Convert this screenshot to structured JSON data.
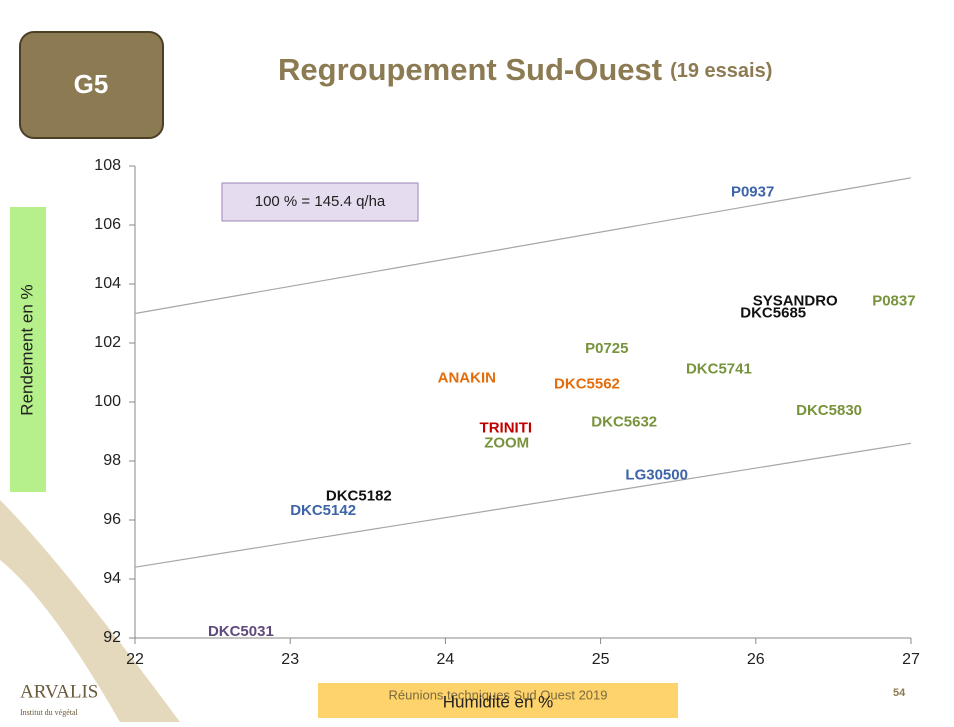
{
  "badge": "G5",
  "chart_data": {
    "type": "scatter",
    "title": "Regroupement Sud-Ouest",
    "subtitle": "(19 essais)",
    "annotation": "100 % = 145.4 q/ha",
    "x_label": "Humidité en %",
    "y_label": "Rendement en %",
    "xlim": [
      22,
      27
    ],
    "ylim": [
      92,
      108
    ],
    "xticks": [
      22,
      23,
      24,
      25,
      26,
      27
    ],
    "yticks": [
      92,
      94,
      96,
      98,
      100,
      102,
      104,
      106,
      108
    ],
    "trend_lines": [
      {
        "color": "#a6a6a6",
        "values": [
          103.0,
          107.6
        ]
      },
      {
        "color": "#a6a6a6",
        "values": [
          94.4,
          98.6
        ]
      }
    ],
    "points": [
      {
        "label": "P0937",
        "x": 25.84,
        "y": 107.1,
        "color": "#3d64a8"
      },
      {
        "label": "SYSANDRO",
        "x": 25.98,
        "y": 103.4,
        "color": "#111111"
      },
      {
        "label": "DKC5685",
        "x": 25.9,
        "y": 103.0,
        "color": "#111111"
      },
      {
        "label": "P0837",
        "x": 26.75,
        "y": 103.4,
        "color": "#77933c"
      },
      {
        "label": "P0725",
        "x": 24.9,
        "y": 101.8,
        "color": "#77933c"
      },
      {
        "label": "DKC5741",
        "x": 25.55,
        "y": 101.1,
        "color": "#77933c"
      },
      {
        "label": "ANAKIN",
        "x": 23.95,
        "y": 100.8,
        "color": "#e46c0a"
      },
      {
        "label": "DKC5562",
        "x": 24.7,
        "y": 100.6,
        "color": "#e46c0a"
      },
      {
        "label": "DKC5830",
        "x": 26.26,
        "y": 99.7,
        "color": "#77933c"
      },
      {
        "label": "DKC5632",
        "x": 24.94,
        "y": 99.3,
        "color": "#77933c"
      },
      {
        "label": "TRINITI",
        "x": 24.22,
        "y": 99.1,
        "color": "#c00000"
      },
      {
        "label": "ZOOM",
        "x": 24.25,
        "y": 98.6,
        "color": "#77933c"
      },
      {
        "label": "LG30500",
        "x": 25.16,
        "y": 97.5,
        "color": "#3d64a8"
      },
      {
        "label": "DKC5182",
        "x": 23.23,
        "y": 96.8,
        "color": "#111111"
      },
      {
        "label": "DKC5142",
        "x": 23.0,
        "y": 96.3,
        "color": "#3d64a8"
      },
      {
        "label": "DKC5031",
        "x": 22.47,
        "y": 92.2,
        "color": "#604a7b"
      }
    ]
  },
  "footer": {
    "text": "Réunions techniques Sud Ouest 2019",
    "page": "54",
    "logo": "ARVALIS",
    "logo_sub": "Institut du végétal"
  }
}
